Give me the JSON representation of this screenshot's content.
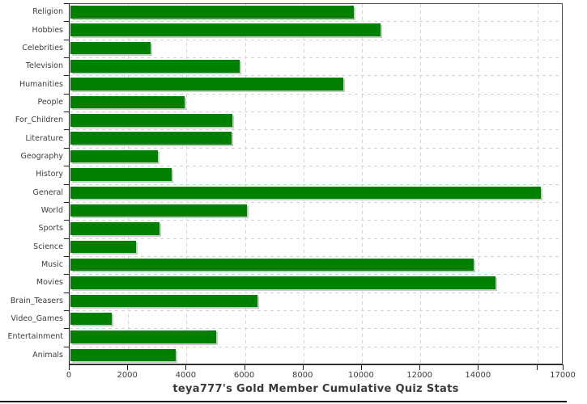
{
  "chart_data": {
    "type": "bar",
    "orientation": "horizontal",
    "title": "teya777's Gold Member Cumulative Quiz Stats",
    "xlabel": "",
    "ylabel": "",
    "categories": [
      "Religion",
      "Hobbies",
      "Celebrities",
      "Television",
      "Humanities",
      "People",
      "For_Children",
      "Literature",
      "Geography",
      "History",
      "General",
      "World",
      "Sports",
      "Science",
      "Music",
      "Movies",
      "Brain_Teasers",
      "Video_Games",
      "Entertainment",
      "Animals"
    ],
    "values": [
      9700,
      10600,
      2750,
      5800,
      9350,
      3900,
      5550,
      5500,
      3000,
      3450,
      16100,
      6050,
      3050,
      2250,
      13800,
      14550,
      6400,
      1400,
      5000,
      3600
    ],
    "xlim": [
      0,
      16900
    ],
    "x_ticks_labeled": [
      0,
      2000,
      4000,
      6000,
      8000,
      10000,
      12000,
      14000
    ],
    "x_ticks_unlabeled": [
      16000
    ],
    "x_edge_tick_label": "17000",
    "grid": "dashed, both directions",
    "legend": "none",
    "colors": {
      "bar": "#008000",
      "bar_shadow": "#c9c9c9",
      "gridline": "#d4d4d4",
      "plot_border": "#4a4a4a",
      "axis": "#222222",
      "tick_label": "#3c3c3c",
      "title": "#3a3a3a",
      "background": "#ffffff",
      "bottom_rule": "#111111"
    }
  }
}
